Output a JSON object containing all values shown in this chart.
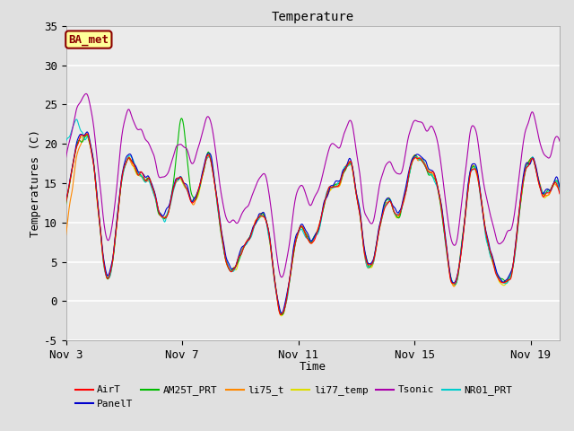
{
  "title": "Temperature",
  "xlabel": "Time",
  "ylabel": "Temperatures (C)",
  "ylim": [
    -5,
    35
  ],
  "xlim_days": [
    0,
    17
  ],
  "x_tick_days": [
    0,
    4,
    8,
    12,
    16
  ],
  "x_tick_labels": [
    "Nov 3",
    "Nov 7",
    "Nov 11",
    "Nov 15",
    "Nov 19"
  ],
  "y_ticks": [
    -5,
    0,
    5,
    10,
    15,
    20,
    25,
    30,
    35
  ],
  "annotation_text": "BA_met",
  "annotation_color": "#8B0000",
  "annotation_bg": "#FFFF99",
  "series_colors": {
    "AirT": "#FF0000",
    "PanelT": "#0000CC",
    "AM25T_PRT": "#00BB00",
    "li75_t": "#FF8800",
    "li77_temp": "#DDDD00",
    "Tsonic": "#AA00AA",
    "NR01_PRT": "#00CCCC"
  },
  "background_color": "#E0E0E0",
  "plot_bg": "#EBEBEB",
  "grid_color": "#FFFFFF",
  "font_family": "monospace",
  "title_fontsize": 10,
  "label_fontsize": 9,
  "tick_fontsize": 9,
  "legend_fontsize": 8
}
